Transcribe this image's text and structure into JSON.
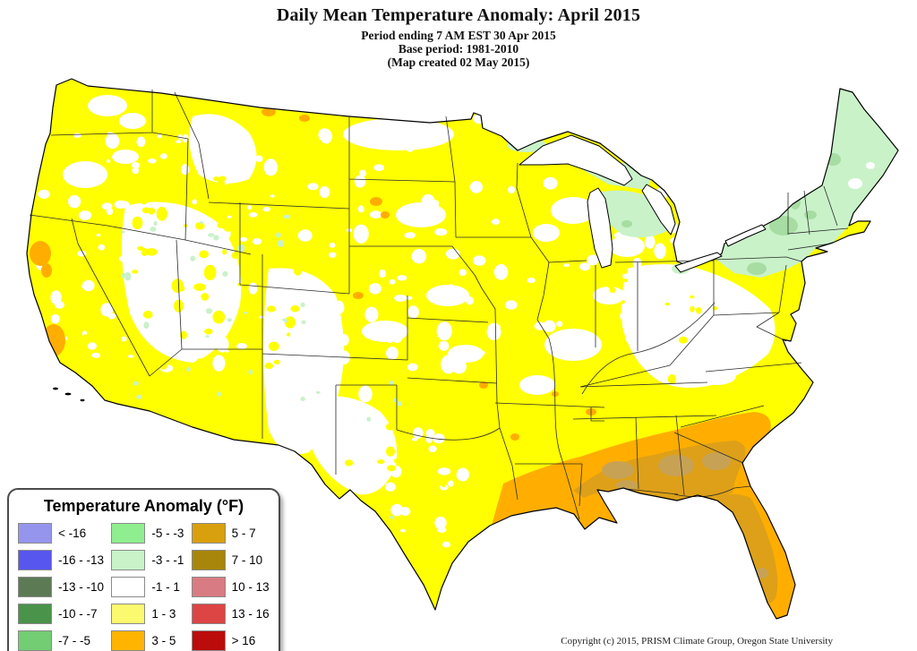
{
  "header": {
    "title": "Daily Mean Temperature Anomaly: April 2015",
    "subtitle_lines": [
      "Period ending 7 AM EST 30 Apr 2015",
      "Base period: 1981-2010",
      "(Map created 02 May 2015)"
    ]
  },
  "legend": {
    "title": "Temperature Anomaly (°F)",
    "entries": [
      {
        "label": "< -16",
        "color": "#9595EE"
      },
      {
        "label": "-16 - -13",
        "color": "#5757F0"
      },
      {
        "label": "-13 - -10",
        "color": "#5C7B55"
      },
      {
        "label": "-10 - -7",
        "color": "#4A934A"
      },
      {
        "label": "-7 - -5",
        "color": "#73CD73"
      },
      {
        "label": "-5 - -3",
        "color": "#8FEE8F"
      },
      {
        "label": "-3 - -1",
        "color": "#C9F2C9"
      },
      {
        "label": "-1 - 1",
        "color": "#FFFFFF"
      },
      {
        "label": "1 - 3",
        "color": "#FBF96E"
      },
      {
        "label": "3 - 5",
        "color": "#FFB400"
      },
      {
        "label": "5 - 7",
        "color": "#D9A00E"
      },
      {
        "label": "7 - 10",
        "color": "#A8860B"
      },
      {
        "label": "10 - 13",
        "color": "#D97B82"
      },
      {
        "label": "13 - 16",
        "color": "#DD4444"
      },
      {
        "label": "> 16",
        "color": "#BB0B0B"
      }
    ]
  },
  "map": {
    "palette": {
      "base_yellow": "#FFFF00",
      "white": "#FFFFFF",
      "pale_green": "#C9F2C9",
      "mid_green": "#A7DCA2",
      "orange": "#FFAE00",
      "gold": "#DDA018",
      "tan": "#C8A254",
      "outline": "#000000",
      "state_line": "#2B2B2B",
      "water": "#FFFFFF"
    },
    "regions_depicted": [
      {
        "area": "Most of the contiguous U.S. (Plains, Midwest, South, West Coast valleys)",
        "anomaly_f": "1 - 3"
      },
      {
        "area": "Intermountain West, Colorado/New Mexico, West Texas, Ohio Valley and Mid-Atlantic interior",
        "anomaly_f": "-1 - 1"
      },
      {
        "area": "New York and northern New England, upper Michigan",
        "anomaly_f": "-3 - -1"
      },
      {
        "area": "Adirondacks and scattered northern New England spots",
        "anomaly_f": "-5 - -3"
      },
      {
        "area": "Gulf Coast band: east Texas coast, Louisiana, Mississippi, Alabama, Georgia, coastal Carolinas, north Florida",
        "anomaly_f": "3 - 5"
      },
      {
        "area": "Florida peninsula, Panhandle and central Gulf interior",
        "anomaly_f": "5 - 7"
      }
    ]
  },
  "footer": {
    "copyright": "Copyright (c) 2015, PRISM Climate Group, Oregon State University"
  }
}
